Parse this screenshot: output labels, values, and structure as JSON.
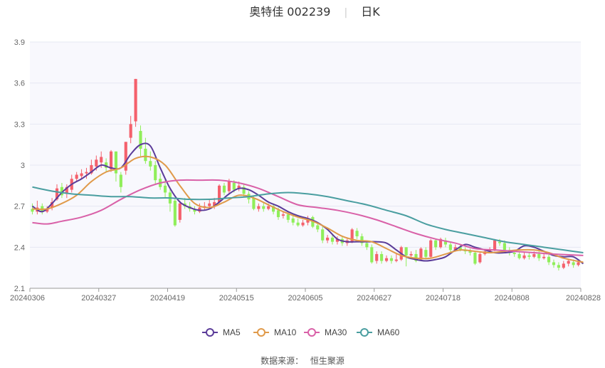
{
  "title": "奥特佳 002239",
  "period": "日K",
  "source_label": "数据来源：",
  "source_name": "恒生聚源",
  "colors": {
    "plot_bg": "#f8f8fd",
    "grid": "#e6e8f2",
    "up": "#f4606c",
    "down": "#90ee5a",
    "MA5": "#5b3c99",
    "MA10": "#e09a4a",
    "MA30": "#d961a8",
    "MA60": "#4a9ea0"
  },
  "chart_data": {
    "type": "candlestick",
    "ylim": [
      2.1,
      3.9
    ],
    "yticks": [
      "2.1",
      "2.4",
      "2.7",
      "3",
      "3.3",
      "3.6",
      "3.9"
    ],
    "xticks": [
      "20240306",
      "20240327",
      "20240419",
      "20240515",
      "20240605",
      "20240627",
      "20240718",
      "20240808",
      "20240828"
    ],
    "legend": [
      {
        "name": "MA5",
        "color": "#5b3c99"
      },
      {
        "name": "MA10",
        "color": "#e09a4a"
      },
      {
        "name": "MA30",
        "color": "#d961a8"
      },
      {
        "name": "MA60",
        "color": "#4a9ea0"
      }
    ],
    "candles": [
      [
        2.68,
        2.66,
        2.72,
        2.64
      ],
      [
        2.66,
        2.69,
        2.74,
        2.64
      ],
      [
        2.7,
        2.66,
        2.72,
        2.64
      ],
      [
        2.66,
        2.68,
        2.7,
        2.65
      ],
      [
        2.69,
        2.73,
        2.76,
        2.67
      ],
      [
        2.75,
        2.83,
        2.86,
        2.74
      ],
      [
        2.84,
        2.78,
        2.87,
        2.76
      ],
      [
        2.79,
        2.84,
        2.86,
        2.76
      ],
      [
        2.82,
        2.9,
        2.93,
        2.8
      ],
      [
        2.9,
        2.93,
        2.95,
        2.88
      ],
      [
        2.92,
        2.94,
        2.97,
        2.9
      ],
      [
        2.94,
        2.95,
        2.98,
        2.9
      ],
      [
        2.94,
        3.0,
        3.04,
        2.93
      ],
      [
        2.99,
        3.04,
        3.07,
        2.96
      ],
      [
        3.02,
        3.06,
        3.1,
        2.98
      ],
      [
        3.02,
        2.98,
        3.05,
        2.95
      ],
      [
        2.97,
        3.1,
        3.11,
        2.95
      ],
      [
        3.1,
        2.94,
        3.1,
        2.88
      ],
      [
        2.93,
        2.84,
        2.95,
        2.8
      ],
      [
        2.96,
        3.17,
        3.17,
        2.93
      ],
      [
        3.2,
        3.3,
        3.36,
        3.16
      ],
      [
        3.32,
        3.63,
        3.63,
        3.28
      ],
      [
        3.25,
        3.12,
        3.29,
        3.06
      ],
      [
        3.12,
        3.03,
        3.2,
        3.01
      ],
      [
        3.03,
        2.99,
        3.1,
        2.96
      ],
      [
        3.0,
        2.89,
        3.03,
        2.86
      ],
      [
        2.9,
        2.84,
        2.94,
        2.82
      ],
      [
        2.85,
        2.8,
        2.9,
        2.76
      ],
      [
        2.8,
        2.72,
        2.84,
        2.66
      ],
      [
        2.74,
        2.56,
        2.76,
        2.55
      ],
      [
        2.6,
        2.72,
        2.74,
        2.58
      ],
      [
        2.72,
        2.7,
        2.76,
        2.68
      ],
      [
        2.7,
        2.68,
        2.73,
        2.66
      ],
      [
        2.68,
        2.66,
        2.7,
        2.64
      ],
      [
        2.66,
        2.69,
        2.72,
        2.65
      ],
      [
        2.69,
        2.7,
        2.73,
        2.67
      ],
      [
        2.7,
        2.72,
        2.75,
        2.68
      ],
      [
        2.7,
        2.73,
        2.76,
        2.68
      ],
      [
        2.73,
        2.85,
        2.86,
        2.72
      ],
      [
        2.85,
        2.8,
        2.87,
        2.78
      ],
      [
        2.81,
        2.88,
        2.9,
        2.79
      ],
      [
        2.87,
        2.82,
        2.89,
        2.8
      ],
      [
        2.83,
        2.85,
        2.88,
        2.81
      ],
      [
        2.84,
        2.79,
        2.86,
        2.77
      ],
      [
        2.79,
        2.75,
        2.81,
        2.72
      ],
      [
        2.76,
        2.68,
        2.78,
        2.67
      ],
      [
        2.68,
        2.7,
        2.72,
        2.66
      ],
      [
        2.7,
        2.68,
        2.73,
        2.66
      ],
      [
        2.68,
        2.7,
        2.72,
        2.67
      ],
      [
        2.7,
        2.66,
        2.72,
        2.64
      ],
      [
        2.67,
        2.62,
        2.69,
        2.6
      ],
      [
        2.63,
        2.64,
        2.66,
        2.61
      ],
      [
        2.64,
        2.6,
        2.66,
        2.58
      ],
      [
        2.61,
        2.58,
        2.63,
        2.56
      ],
      [
        2.58,
        2.56,
        2.61,
        2.55
      ],
      [
        2.56,
        2.58,
        2.6,
        2.55
      ],
      [
        2.58,
        2.61,
        2.63,
        2.56
      ],
      [
        2.62,
        2.55,
        2.63,
        2.54
      ],
      [
        2.56,
        2.53,
        2.58,
        2.51
      ],
      [
        2.53,
        2.45,
        2.55,
        2.43
      ],
      [
        2.45,
        2.47,
        2.49,
        2.43
      ],
      [
        2.47,
        2.44,
        2.49,
        2.42
      ],
      [
        2.44,
        2.46,
        2.48,
        2.42
      ],
      [
        2.46,
        2.43,
        2.48,
        2.41
      ],
      [
        2.43,
        2.45,
        2.47,
        2.41
      ],
      [
        2.44,
        2.53,
        2.54,
        2.43
      ],
      [
        2.52,
        2.48,
        2.54,
        2.46
      ],
      [
        2.48,
        2.43,
        2.5,
        2.41
      ],
      [
        2.43,
        2.4,
        2.45,
        2.38
      ],
      [
        2.4,
        2.29,
        2.42,
        2.28
      ],
      [
        2.3,
        2.35,
        2.37,
        2.28
      ],
      [
        2.35,
        2.3,
        2.37,
        2.28
      ],
      [
        2.3,
        2.32,
        2.34,
        2.29
      ],
      [
        2.32,
        2.3,
        2.34,
        2.28
      ],
      [
        2.3,
        2.31,
        2.35,
        2.29
      ],
      [
        2.31,
        2.4,
        2.41,
        2.3
      ],
      [
        2.4,
        2.34,
        2.4,
        2.26
      ],
      [
        2.34,
        2.35,
        2.37,
        2.32
      ],
      [
        2.35,
        2.3,
        2.38,
        2.29
      ],
      [
        2.31,
        2.39,
        2.4,
        2.3
      ],
      [
        2.38,
        2.33,
        2.4,
        2.31
      ],
      [
        2.33,
        2.45,
        2.46,
        2.32
      ],
      [
        2.45,
        2.4,
        2.46,
        2.38
      ],
      [
        2.4,
        2.46,
        2.47,
        2.39
      ],
      [
        2.45,
        2.42,
        2.47,
        2.4
      ],
      [
        2.42,
        2.38,
        2.44,
        2.36
      ],
      [
        2.38,
        2.4,
        2.42,
        2.37
      ],
      [
        2.4,
        2.38,
        2.42,
        2.37
      ],
      [
        2.38,
        2.37,
        2.4,
        2.35
      ],
      [
        2.37,
        2.36,
        2.39,
        2.34
      ],
      [
        2.36,
        2.28,
        2.37,
        2.27
      ],
      [
        2.29,
        2.35,
        2.36,
        2.28
      ],
      [
        2.35,
        2.37,
        2.38,
        2.34
      ],
      [
        2.37,
        2.38,
        2.4,
        2.36
      ],
      [
        2.38,
        2.45,
        2.46,
        2.37
      ],
      [
        2.44,
        2.43,
        2.46,
        2.41
      ],
      [
        2.43,
        2.38,
        2.45,
        2.36
      ],
      [
        2.38,
        2.36,
        2.4,
        2.34
      ],
      [
        2.36,
        2.35,
        2.38,
        2.33
      ],
      [
        2.35,
        2.32,
        2.37,
        2.31
      ],
      [
        2.32,
        2.34,
        2.36,
        2.31
      ],
      [
        2.34,
        2.33,
        2.36,
        2.31
      ],
      [
        2.33,
        2.35,
        2.37,
        2.32
      ],
      [
        2.35,
        2.32,
        2.37,
        2.3
      ],
      [
        2.32,
        2.33,
        2.35,
        2.31
      ],
      [
        2.33,
        2.29,
        2.35,
        2.27
      ],
      [
        2.29,
        2.27,
        2.31,
        2.25
      ],
      [
        2.27,
        2.25,
        2.29,
        2.23
      ],
      [
        2.25,
        2.28,
        2.3,
        2.24
      ],
      [
        2.28,
        2.3,
        2.31,
        2.26
      ],
      [
        2.29,
        2.27,
        2.31,
        2.25
      ],
      [
        2.27,
        2.29,
        2.3,
        2.26
      ]
    ],
    "ma_series": [
      {
        "name": "MA5",
        "x": [
          0,
          2,
          4,
          6,
          8,
          10,
          12,
          14,
          16,
          18,
          20,
          22,
          24,
          26,
          28,
          30,
          32,
          34,
          36,
          38,
          40,
          42,
          44,
          46,
          48,
          50,
          52,
          54,
          56,
          58,
          60,
          62,
          64,
          66,
          68,
          70,
          72,
          74,
          76,
          78,
          80,
          82,
          84,
          86,
          88,
          90,
          92,
          94,
          96,
          98,
          100,
          102,
          104,
          106,
          108,
          110,
          112
        ],
        "values": [
          2.7,
          2.66,
          2.72,
          2.8,
          2.86,
          2.9,
          2.95,
          3.0,
          2.98,
          2.98,
          3.08,
          3.15,
          3.14,
          2.98,
          2.83,
          2.73,
          2.69,
          2.67,
          2.68,
          2.73,
          2.79,
          2.83,
          2.82,
          2.78,
          2.73,
          2.7,
          2.66,
          2.63,
          2.61,
          2.58,
          2.53,
          2.46,
          2.44,
          2.44,
          2.44,
          2.44,
          2.43,
          2.38,
          2.33,
          2.31,
          2.3,
          2.31,
          2.33,
          2.38,
          2.42,
          2.4,
          2.38,
          2.36,
          2.36,
          2.37,
          2.41,
          2.4,
          2.37,
          2.34,
          2.33,
          2.33,
          2.28
        ]
      },
      {
        "name": "MA10",
        "x": [
          0,
          3,
          6,
          9,
          12,
          15,
          18,
          21,
          24,
          27,
          30,
          33,
          36,
          39,
          42,
          45,
          48,
          51,
          54,
          57,
          60,
          63,
          66,
          69,
          72,
          75,
          78,
          81,
          84,
          87,
          90,
          93,
          96,
          99,
          102,
          105,
          108,
          112
        ],
        "values": [
          2.68,
          2.68,
          2.72,
          2.78,
          2.88,
          2.95,
          2.98,
          3.05,
          3.06,
          3.0,
          2.85,
          2.72,
          2.69,
          2.73,
          2.78,
          2.76,
          2.71,
          2.66,
          2.62,
          2.59,
          2.54,
          2.48,
          2.45,
          2.44,
          2.39,
          2.34,
          2.32,
          2.32,
          2.35,
          2.38,
          2.37,
          2.36,
          2.37,
          2.38,
          2.38,
          2.36,
          2.32,
          2.29
        ]
      },
      {
        "name": "MA30",
        "x": [
          0,
          3,
          6,
          10,
          14,
          18,
          22,
          26,
          30,
          34,
          38,
          42,
          46,
          50,
          54,
          58,
          62,
          66,
          70,
          74,
          78,
          82,
          86,
          90,
          94,
          98,
          102,
          106,
          112
        ],
        "values": [
          2.58,
          2.57,
          2.59,
          2.62,
          2.67,
          2.75,
          2.82,
          2.87,
          2.89,
          2.89,
          2.89,
          2.87,
          2.83,
          2.77,
          2.71,
          2.69,
          2.67,
          2.64,
          2.6,
          2.55,
          2.5,
          2.46,
          2.43,
          2.39,
          2.38,
          2.37,
          2.36,
          2.35,
          2.34
        ]
      },
      {
        "name": "MA60",
        "x": [
          0,
          4,
          8,
          12,
          16,
          20,
          24,
          28,
          32,
          36,
          40,
          44,
          48,
          52,
          56,
          60,
          64,
          68,
          72,
          76,
          80,
          84,
          88,
          92,
          96,
          100,
          104,
          108,
          112
        ],
        "values": [
          2.84,
          2.81,
          2.79,
          2.78,
          2.77,
          2.77,
          2.76,
          2.76,
          2.75,
          2.75,
          2.76,
          2.77,
          2.79,
          2.8,
          2.79,
          2.77,
          2.74,
          2.71,
          2.67,
          2.63,
          2.57,
          2.53,
          2.5,
          2.47,
          2.44,
          2.42,
          2.4,
          2.38,
          2.36
        ]
      }
    ]
  }
}
